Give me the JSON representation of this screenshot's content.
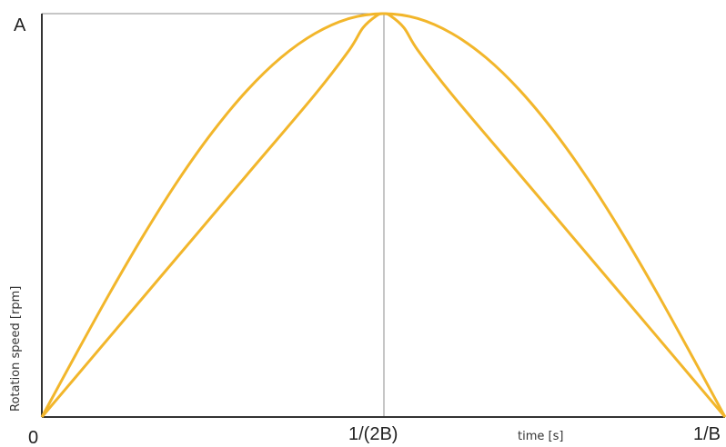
{
  "chart_data": {
    "type": "line",
    "xlabel": "time [s]",
    "ylabel": "Rotation speed [rpm]",
    "x_tick_labels": [
      "0",
      "1/(2B)",
      "1/B"
    ],
    "y_tick_labels": [
      "A"
    ],
    "xlim": [
      0,
      1
    ],
    "ylim": [
      0,
      1
    ],
    "x_units_note": "",
    "colors": {
      "curve": "#F2B62B",
      "axis": "#333333",
      "guide": "#8c8c8c"
    },
    "grid": false,
    "series": [
      {
        "x": [
          0,
          0.05,
          0.1,
          0.15,
          0.2,
          0.25,
          0.3,
          0.35,
          0.4,
          0.45,
          0.5,
          0.55,
          0.6,
          0.65,
          0.7,
          0.75,
          0.8,
          0.85,
          0.9,
          0.95,
          1
        ],
        "y": [
          0,
          0.156,
          0.309,
          0.454,
          0.588,
          0.707,
          0.809,
          0.891,
          0.951,
          0.988,
          1,
          0.988,
          0.951,
          0.891,
          0.809,
          0.707,
          0.588,
          0.454,
          0.309,
          0.156,
          0
        ]
      },
      {
        "x": [
          0,
          0.05,
          0.1,
          0.2,
          0.3,
          0.4,
          0.45,
          0.47,
          0.49,
          0.5,
          0.51,
          0.53,
          0.55,
          0.6,
          0.7,
          0.8,
          0.9,
          0.95,
          1
        ],
        "y": [
          0,
          0.1,
          0.2,
          0.4,
          0.6,
          0.8,
          0.91,
          0.965,
          0.995,
          1,
          0.995,
          0.965,
          0.91,
          0.8,
          0.6,
          0.4,
          0.2,
          0.1,
          0
        ]
      }
    ]
  }
}
